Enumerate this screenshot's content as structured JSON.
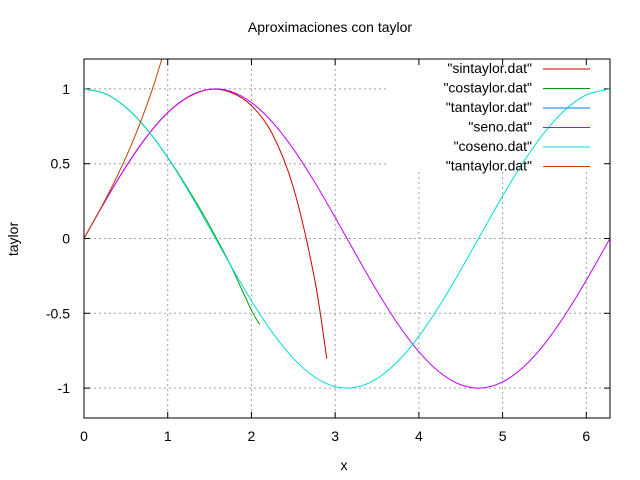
{
  "chart_data": {
    "type": "line",
    "title": "Aproximaciones con taylor",
    "xlabel": "x",
    "ylabel": "taylor",
    "xlim": [
      0,
      6.283
    ],
    "ylim": [
      -1.2,
      1.2
    ],
    "grid": true,
    "legend_position": "top-right",
    "x_ticks": [
      0,
      1,
      2,
      3,
      4,
      5,
      6
    ],
    "y_ticks": [
      -1,
      -0.5,
      0,
      0.5,
      1
    ],
    "x_tick_labels": [
      "0",
      "1",
      "2",
      "3",
      "4",
      "5",
      "6"
    ],
    "y_tick_labels": [
      "-1",
      "-0.5",
      "0",
      "0.5",
      "1"
    ],
    "series": [
      {
        "name": "\"sintaylor.dat\"",
        "color": "#cc0000",
        "x": [
          0,
          0.25,
          0.5,
          0.75,
          1.0,
          1.25,
          1.5,
          1.75,
          2.0,
          2.25,
          2.5,
          2.75,
          2.9
        ],
        "y": [
          0,
          0.2474,
          0.4794,
          0.6817,
          0.8417,
          0.9469,
          0.9973,
          0.9776,
          0.8889,
          0.6988,
          0.3428,
          -0.2576,
          -0.8024
        ]
      },
      {
        "name": "\"costaylor.dat\"",
        "color": "#00a000",
        "x": [
          0,
          0.25,
          0.5,
          0.75,
          1.0,
          1.25,
          1.5,
          1.75,
          2.0,
          2.1
        ],
        "y": [
          1.0,
          0.9689,
          0.8776,
          0.7305,
          0.5417,
          0.3242,
          0.0859,
          -0.1794,
          -0.4792,
          -0.5757
        ]
      },
      {
        "name": "\"tantaylor.dat\"",
        "color": "#0080ff",
        "x": [],
        "y": []
      },
      {
        "name": "\"seno.dat\"",
        "color": "#c000ff",
        "x": [
          0,
          0.25,
          0.5,
          0.75,
          1.0,
          1.25,
          1.5,
          1.75,
          2.0,
          2.25,
          2.5,
          2.75,
          3.0,
          3.25,
          3.5,
          3.75,
          4.0,
          4.25,
          4.5,
          4.75,
          5.0,
          5.25,
          5.5,
          5.75,
          6.0,
          6.283
        ],
        "y": [
          0,
          0.2474,
          0.4794,
          0.6816,
          0.8415,
          0.949,
          0.9975,
          0.984,
          0.9093,
          0.7781,
          0.5985,
          0.3817,
          0.1411,
          -0.1082,
          -0.3508,
          -0.5716,
          -0.7568,
          -0.895,
          -0.9775,
          -0.9993,
          -0.9589,
          -0.8589,
          -0.7055,
          -0.5083,
          -0.2794,
          0
        ]
      },
      {
        "name": "\"coseno.dat\"",
        "color": "#00dddd",
        "x": [
          0,
          0.25,
          0.5,
          0.75,
          1.0,
          1.25,
          1.5,
          1.75,
          2.0,
          2.25,
          2.5,
          2.75,
          3.0,
          3.25,
          3.5,
          3.75,
          4.0,
          4.25,
          4.5,
          4.75,
          5.0,
          5.25,
          5.5,
          5.75,
          6.0,
          6.283
        ],
        "y": [
          1.0,
          0.9689,
          0.8776,
          0.7317,
          0.5403,
          0.3153,
          0.0707,
          -0.1782,
          -0.4161,
          -0.6282,
          -0.8011,
          -0.9243,
          -0.99,
          -0.9941,
          -0.9365,
          -0.8206,
          -0.6536,
          -0.4461,
          -0.2108,
          0.0376,
          0.2837,
          0.5121,
          0.7087,
          0.8612,
          0.9602,
          1.0
        ]
      },
      {
        "name": "\"tantaylor.dat\"",
        "color": "#c04000",
        "x": [
          0,
          0.2,
          0.4,
          0.6,
          0.8,
          0.93
        ],
        "y": [
          0,
          0.2027,
          0.4213,
          0.672,
          0.9707,
          1.2
        ]
      }
    ]
  }
}
